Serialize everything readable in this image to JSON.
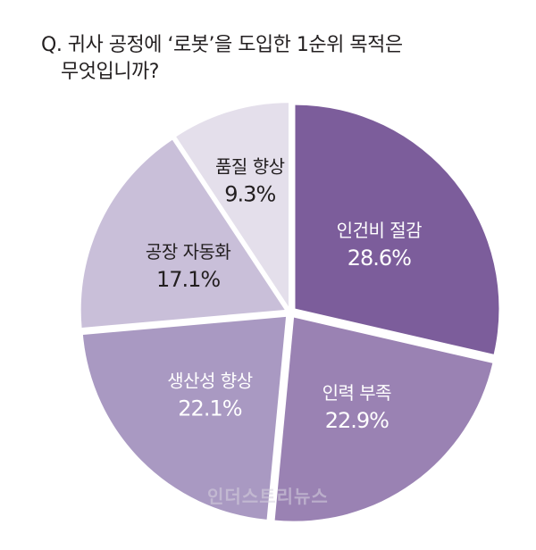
{
  "question": {
    "line1": "Q. 귀사 공정에 ‘로봇’을 도입한 1순위 목적은",
    "line2": "무엇입니까?"
  },
  "watermark_text": "인더스트리뉴스",
  "chart_data": {
    "type": "pie",
    "title": "Q. 귀사 공정에 ‘로봇’을 도입한 1순위 목적은 무엇입니까?",
    "slices": [
      {
        "label": "인건비 절감",
        "value": 28.6,
        "display": "28.6%",
        "color": "#7c5d9b",
        "text_color": "#ffffff"
      },
      {
        "label": "인력 부족",
        "value": 22.9,
        "display": "22.9%",
        "color": "#9a82b3",
        "text_color": "#ffffff"
      },
      {
        "label": "생산성 향상",
        "value": 22.1,
        "display": "22.1%",
        "color": "#a999c2",
        "text_color": "#ffffff"
      },
      {
        "label": "공장 자동화",
        "value": 17.1,
        "display": "17.1%",
        "color": "#c9bfd9",
        "text_color": "#231f20"
      },
      {
        "label": "품질 향상",
        "value": 9.3,
        "display": "9.3%",
        "color": "#e4dfeb",
        "text_color": "#231f20"
      }
    ],
    "start": "12 o'clock",
    "direction": "clockwise",
    "exploded": true
  }
}
